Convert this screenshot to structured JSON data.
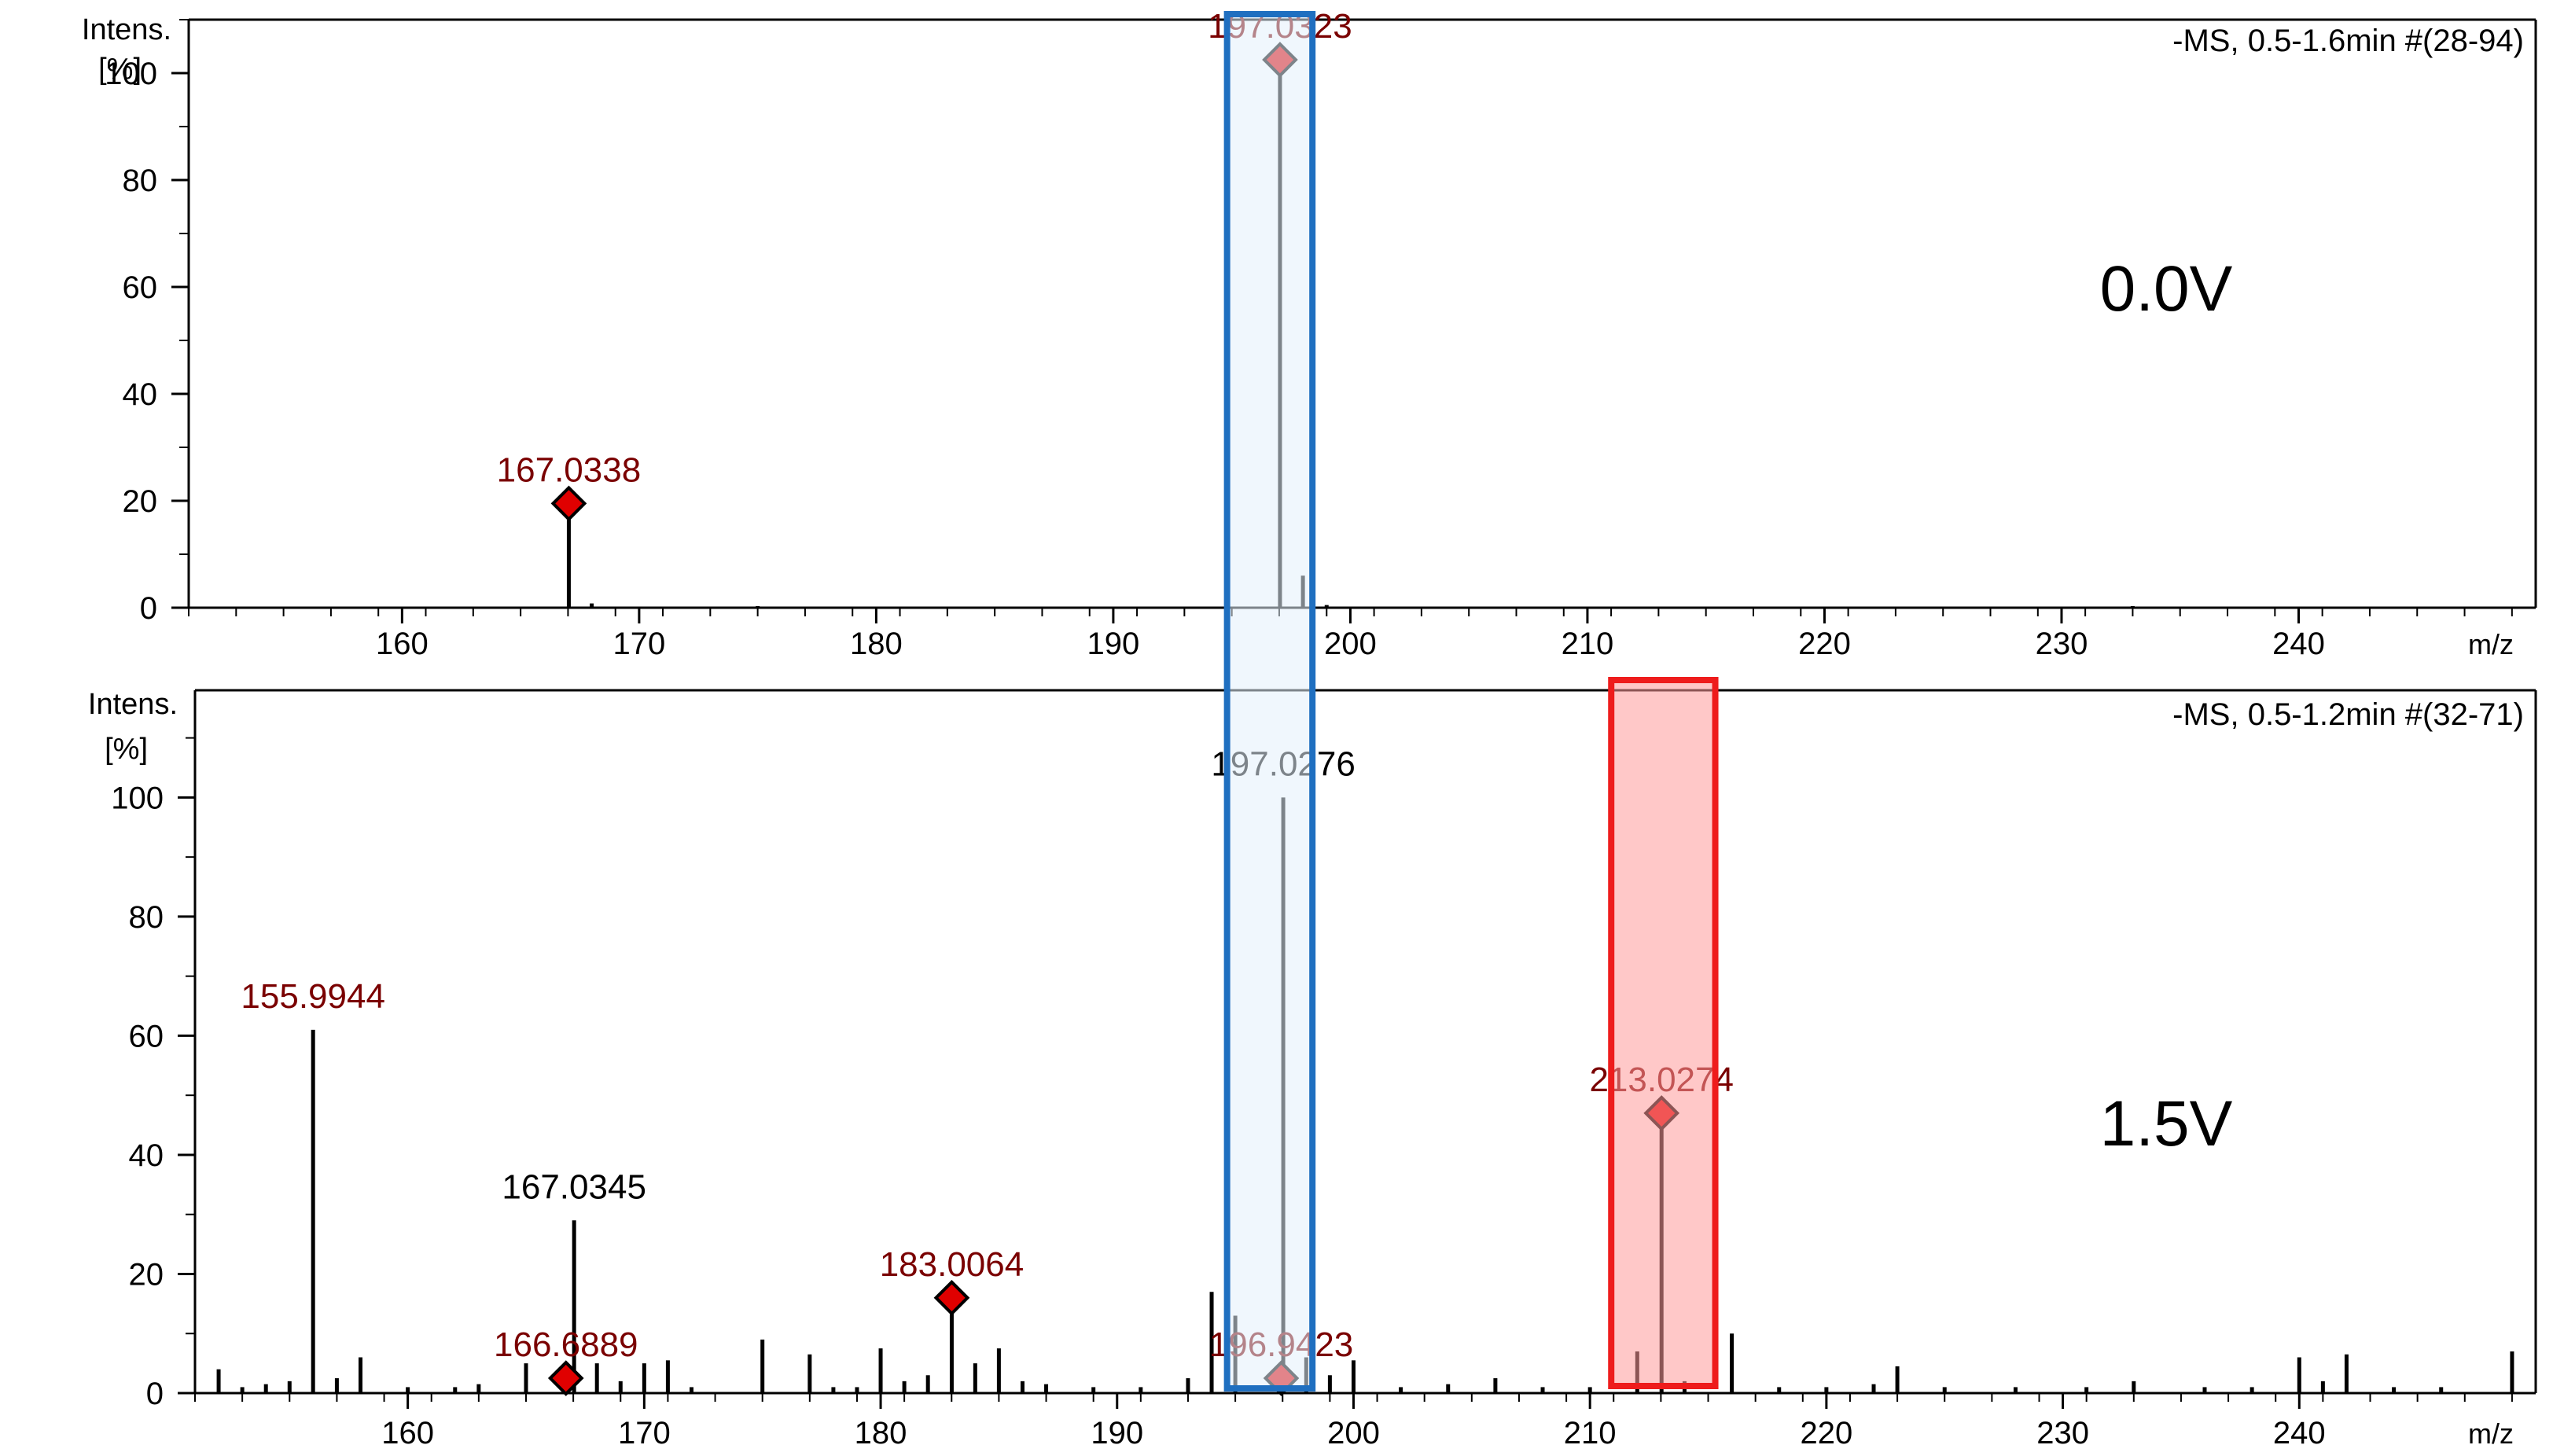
{
  "colors": {
    "peak": "#000000",
    "label_red": "#7a0000",
    "marker": "#e00000",
    "blue_box": "#1f6fc0",
    "blue_fill": "#e3f1fb",
    "red_box": "#ee1c1c",
    "red_fill": "#ff9b9b"
  },
  "chart_data": [
    {
      "type": "bar",
      "title": "-MS, 0.5-1.6min #(28-94)",
      "ylabel_line1": "Intens.",
      "ylabel_line2": "[%]",
      "xlabel": "m/z",
      "voltage": "0.0V",
      "xlim": [
        151,
        250
      ],
      "ylim": [
        0,
        110
      ],
      "xticks": [
        160,
        170,
        180,
        190,
        200,
        210,
        220,
        230,
        240
      ],
      "yticks": [
        0,
        20,
        40,
        60,
        80,
        100
      ],
      "peaks": [
        {
          "x": 167.0338,
          "y": 19.5
        },
        {
          "x": 168.0,
          "y": 0.8
        },
        {
          "x": 175.0,
          "y": 0.3
        },
        {
          "x": 197.0323,
          "y": 102.5
        },
        {
          "x": 198.0,
          "y": 6.0
        },
        {
          "x": 199.0,
          "y": 0.5
        },
        {
          "x": 233.0,
          "y": 0.3
        }
      ],
      "labels": [
        {
          "text": "167.0338",
          "x": 167.0338,
          "y": 19.5,
          "color": "red",
          "marker": true
        },
        {
          "text": "197.0323",
          "x": 197.0323,
          "y": 102.5,
          "color": "red",
          "marker": true
        }
      ]
    },
    {
      "type": "bar",
      "title": "-MS, 0.5-1.2min #(32-71)",
      "ylabel_line1": "Intens.",
      "ylabel_line2": "[%]",
      "xlabel": "m/z",
      "voltage": "1.5V",
      "xlim": [
        151,
        250
      ],
      "ylim": [
        0,
        118
      ],
      "xticks": [
        160,
        170,
        180,
        190,
        200,
        210,
        220,
        230,
        240
      ],
      "yticks": [
        0,
        20,
        40,
        60,
        80,
        100
      ],
      "peaks": [
        {
          "x": 152.0,
          "y": 4
        },
        {
          "x": 153.0,
          "y": 1
        },
        {
          "x": 154.0,
          "y": 1.5
        },
        {
          "x": 155.0,
          "y": 2
        },
        {
          "x": 155.9944,
          "y": 61
        },
        {
          "x": 157.0,
          "y": 2.5
        },
        {
          "x": 158.0,
          "y": 6
        },
        {
          "x": 160.0,
          "y": 1
        },
        {
          "x": 162.0,
          "y": 1
        },
        {
          "x": 163.0,
          "y": 1.5
        },
        {
          "x": 165.0,
          "y": 5
        },
        {
          "x": 166.6889,
          "y": 2.5
        },
        {
          "x": 167.0345,
          "y": 29
        },
        {
          "x": 168.0,
          "y": 5
        },
        {
          "x": 169.0,
          "y": 2
        },
        {
          "x": 170.0,
          "y": 5
        },
        {
          "x": 171.0,
          "y": 5.5
        },
        {
          "x": 172.0,
          "y": 1
        },
        {
          "x": 175.0,
          "y": 9
        },
        {
          "x": 177.0,
          "y": 6.5
        },
        {
          "x": 178.0,
          "y": 1
        },
        {
          "x": 179.0,
          "y": 1
        },
        {
          "x": 180.0,
          "y": 7.5
        },
        {
          "x": 181.0,
          "y": 2
        },
        {
          "x": 182.0,
          "y": 3
        },
        {
          "x": 183.0064,
          "y": 16
        },
        {
          "x": 184.0,
          "y": 5
        },
        {
          "x": 185.0,
          "y": 7.5
        },
        {
          "x": 186.0,
          "y": 2
        },
        {
          "x": 187.0,
          "y": 1.5
        },
        {
          "x": 189.0,
          "y": 1
        },
        {
          "x": 191.0,
          "y": 1
        },
        {
          "x": 193.0,
          "y": 2.5
        },
        {
          "x": 194.0,
          "y": 17
        },
        {
          "x": 195.0,
          "y": 13
        },
        {
          "x": 196.9423,
          "y": 2.5
        },
        {
          "x": 197.0276,
          "y": 100
        },
        {
          "x": 198.0,
          "y": 6
        },
        {
          "x": 199.0,
          "y": 3
        },
        {
          "x": 200.0,
          "y": 5.5
        },
        {
          "x": 202.0,
          "y": 1
        },
        {
          "x": 204.0,
          "y": 1.5
        },
        {
          "x": 206.0,
          "y": 2.5
        },
        {
          "x": 208.0,
          "y": 1
        },
        {
          "x": 210.0,
          "y": 1
        },
        {
          "x": 212.0,
          "y": 7
        },
        {
          "x": 213.0274,
          "y": 47
        },
        {
          "x": 214.0,
          "y": 2
        },
        {
          "x": 216.0,
          "y": 10
        },
        {
          "x": 218.0,
          "y": 1
        },
        {
          "x": 220.0,
          "y": 1
        },
        {
          "x": 222.0,
          "y": 1.5
        },
        {
          "x": 223.0,
          "y": 4.5
        },
        {
          "x": 225.0,
          "y": 1
        },
        {
          "x": 228.0,
          "y": 1
        },
        {
          "x": 231.0,
          "y": 1
        },
        {
          "x": 233.0,
          "y": 2
        },
        {
          "x": 236.0,
          "y": 1
        },
        {
          "x": 238.0,
          "y": 1
        },
        {
          "x": 240.0,
          "y": 6
        },
        {
          "x": 241.0,
          "y": 2
        },
        {
          "x": 242.0,
          "y": 6.5
        },
        {
          "x": 244.0,
          "y": 1
        },
        {
          "x": 246.0,
          "y": 1
        },
        {
          "x": 249.0,
          "y": 7
        }
      ],
      "labels": [
        {
          "text": "155.9944",
          "x": 155.9944,
          "y": 61,
          "color": "red",
          "marker": false
        },
        {
          "text": "167.0345",
          "x": 167.0345,
          "y": 29,
          "color": "black",
          "marker": false
        },
        {
          "text": "166.6889",
          "x": 166.6889,
          "y": 2.5,
          "color": "red",
          "marker": true
        },
        {
          "text": "183.0064",
          "x": 183.0064,
          "y": 16,
          "color": "red",
          "marker": true
        },
        {
          "text": "196.9423",
          "x": 196.9423,
          "y": 2.5,
          "color": "red",
          "marker": true
        },
        {
          "text": "197.0276",
          "x": 197.0276,
          "y": 100,
          "color": "black",
          "marker": false
        },
        {
          "text": "213.0274",
          "x": 213.0274,
          "y": 47,
          "color": "red",
          "marker": true
        }
      ]
    }
  ],
  "highlights": [
    {
      "name": "blue-highlight-box",
      "x_from": 194.8,
      "x_to": 198.4,
      "color": "blue"
    },
    {
      "name": "red-highlight-box",
      "x_from": 210.9,
      "x_to": 215.3,
      "color": "red"
    }
  ]
}
